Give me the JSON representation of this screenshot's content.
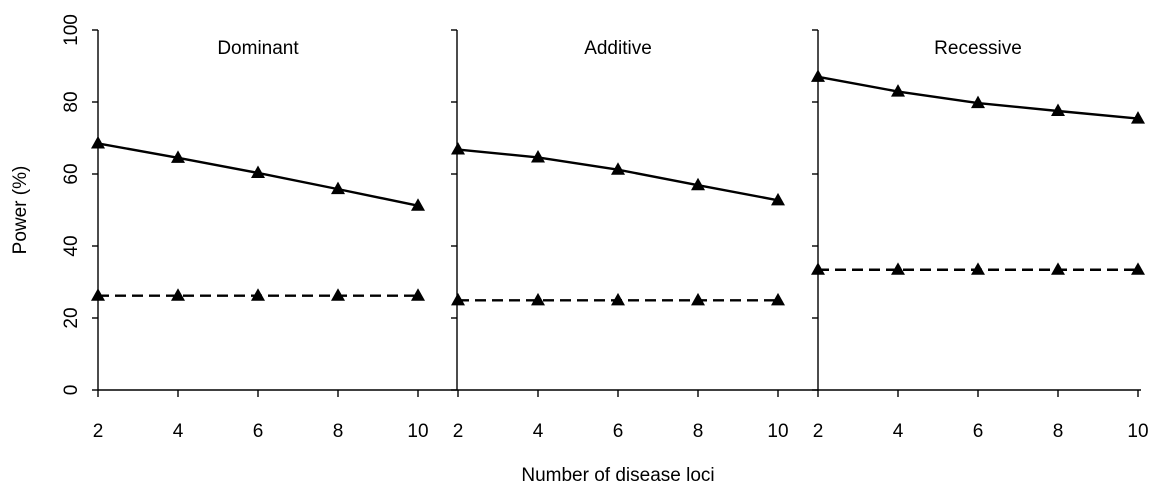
{
  "chart_data": {
    "type": "line",
    "ylabel": "Power (%)",
    "xlabel": "Number of disease loci",
    "ylim": [
      0,
      100
    ],
    "yticks": [
      "0",
      "20",
      "40",
      "60",
      "80",
      "100"
    ],
    "xlim": [
      2,
      10
    ],
    "xticks": [
      "2",
      "4",
      "6",
      "8",
      "10"
    ],
    "grid": false,
    "legend": "none",
    "panels": [
      {
        "title": "Dominant",
        "x": [
          2,
          4,
          6,
          8,
          10
        ],
        "series": [
          {
            "style": "solid",
            "marker": "triangle",
            "values": [
              68.5,
              64.5,
              60.3,
              55.8,
              51.2
            ]
          },
          {
            "style": "dashed",
            "marker": "triangle",
            "values": [
              26.2,
              26.2,
              26.2,
              26.2,
              26.2
            ]
          }
        ]
      },
      {
        "title": "Additive",
        "x": [
          2,
          4,
          6,
          8,
          10
        ],
        "series": [
          {
            "style": "solid",
            "marker": "triangle",
            "values": [
              66.8,
              64.6,
              61.2,
              56.9,
              52.7
            ]
          },
          {
            "style": "dashed",
            "marker": "triangle",
            "values": [
              24.9,
              24.9,
              24.9,
              24.9,
              24.9
            ]
          }
        ]
      },
      {
        "title": "Recessive",
        "x": [
          2,
          4,
          6,
          8,
          10
        ],
        "series": [
          {
            "style": "solid",
            "marker": "triangle",
            "values": [
              87.0,
              82.9,
              79.7,
              77.5,
              75.4
            ]
          },
          {
            "style": "dashed",
            "marker": "triangle",
            "values": [
              33.4,
              33.4,
              33.4,
              33.4,
              33.4
            ]
          }
        ]
      }
    ]
  },
  "colors": {
    "line": "#000000",
    "marker": "#000000",
    "background": "#ffffff"
  }
}
